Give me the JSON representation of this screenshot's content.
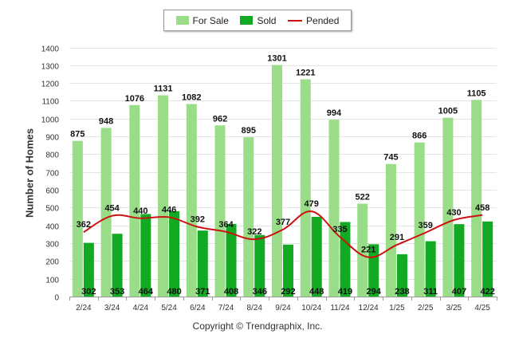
{
  "chart_data": {
    "type": "bar",
    "categories": [
      "2/24",
      "3/24",
      "4/24",
      "5/24",
      "6/24",
      "7/24",
      "8/24",
      "9/24",
      "10/24",
      "11/24",
      "12/24",
      "1/25",
      "2/25",
      "3/25",
      "4/25"
    ],
    "series": [
      {
        "name": "For Sale",
        "type": "bar",
        "color": "#99dd88",
        "values": [
          875,
          948,
          1076,
          1131,
          1082,
          962,
          895,
          1301,
          1221,
          994,
          522,
          745,
          866,
          1005,
          1105
        ]
      },
      {
        "name": "Sold",
        "type": "bar",
        "color": "#11aa22",
        "values": [
          302,
          353,
          464,
          480,
          371,
          408,
          346,
          292,
          448,
          419,
          294,
          238,
          311,
          407,
          422
        ]
      },
      {
        "name": "Pended",
        "type": "line",
        "color": "#cc1111",
        "values": [
          362,
          454,
          440,
          446,
          392,
          364,
          322,
          377,
          479,
          335,
          221,
          291,
          359,
          430,
          458
        ]
      }
    ],
    "xlabel": "",
    "ylabel": "Number of Homes",
    "ylim": [
      0,
      1400
    ],
    "yticks": [
      0,
      100,
      200,
      300,
      400,
      500,
      600,
      700,
      800,
      900,
      1000,
      1100,
      1200,
      1300,
      1400
    ],
    "grid": true,
    "legend_position": "top-center"
  },
  "footer": {
    "copyright": "Copyright © Trendgraphix, Inc."
  }
}
